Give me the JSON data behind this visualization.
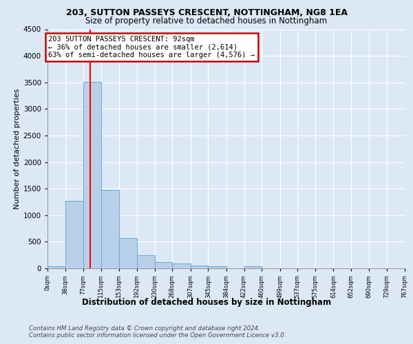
{
  "title1": "203, SUTTON PASSEYS CRESCENT, NOTTINGHAM, NG8 1EA",
  "title2": "Size of property relative to detached houses in Nottingham",
  "xlabel": "Distribution of detached houses by size in Nottingham",
  "ylabel": "Number of detached properties",
  "bin_edges": [
    0,
    38,
    77,
    115,
    153,
    192,
    230,
    268,
    307,
    345,
    384,
    422,
    460,
    499,
    537,
    575,
    614,
    652,
    690,
    729,
    767
  ],
  "bar_heights": [
    40,
    1270,
    3510,
    1480,
    570,
    240,
    120,
    90,
    55,
    40,
    0,
    45,
    0,
    0,
    0,
    0,
    0,
    0,
    0,
    0
  ],
  "bar_color": "#b8d0ea",
  "bar_edge_color": "#6aaad4",
  "red_line_x": 92,
  "annotation_text": "203 SUTTON PASSEYS CRESCENT: 92sqm\n← 36% of detached houses are smaller (2,614)\n63% of semi-detached houses are larger (4,576) →",
  "annotation_box_color": "#ffffff",
  "annotation_border_color": "#cc0000",
  "ylim": [
    0,
    4500
  ],
  "yticks": [
    0,
    500,
    1000,
    1500,
    2000,
    2500,
    3000,
    3500,
    4000,
    4500
  ],
  "bg_color": "#dce8f5",
  "plot_bg_color": "#dce8f5",
  "footer_text": "Contains HM Land Registry data © Crown copyright and database right 2024.\nContains public sector information licensed under the Open Government Licence v3.0.",
  "grid_color": "#ffffff",
  "tick_labels": [
    "0sqm",
    "38sqm",
    "77sqm",
    "115sqm",
    "153sqm",
    "192sqm",
    "230sqm",
    "268sqm",
    "307sqm",
    "345sqm",
    "384sqm",
    "422sqm",
    "460sqm",
    "499sqm",
    "537sqm",
    "575sqm",
    "614sqm",
    "652sqm",
    "690sqm",
    "729sqm",
    "767sqm"
  ]
}
